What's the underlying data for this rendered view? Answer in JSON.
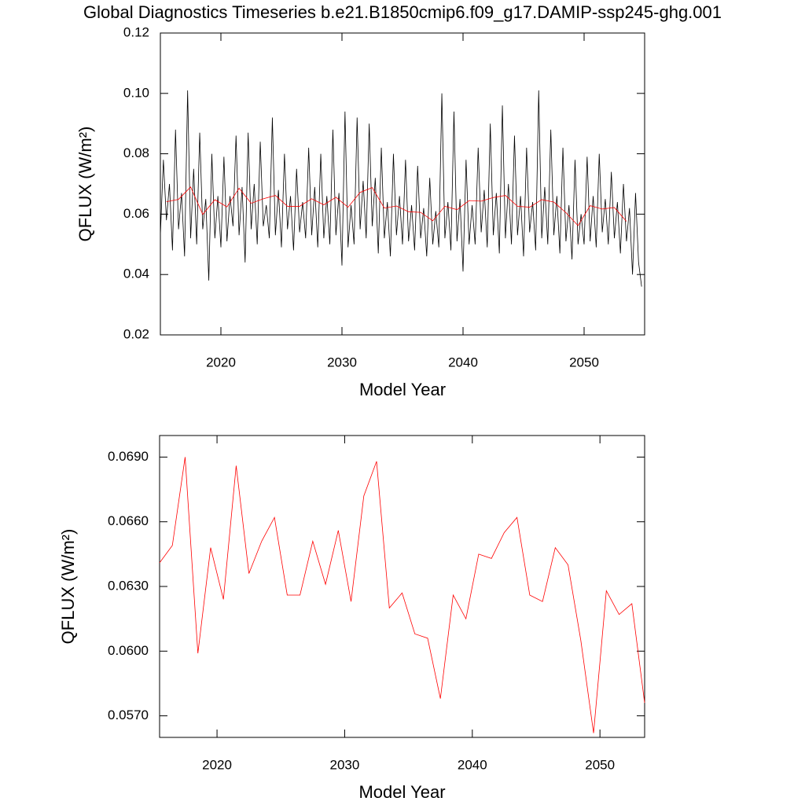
{
  "chart_data": [
    {
      "type": "line",
      "title": "Global Diagnostics Timeseries b.e21.B1850cmip6.f09_g17.DAMIP-ssp245-ghg.001",
      "xlabel": "Model Year",
      "ylabel": "QFLUX (W/m²)",
      "xlim": [
        2015,
        2055
      ],
      "xticks": [
        2020,
        2030,
        2040,
        2050
      ],
      "ylim": [
        0.02,
        0.12
      ],
      "yticks": [
        0.02,
        0.04,
        0.06,
        0.08,
        {
          "value": 0.1,
          "label": "0.10"
        },
        0.12
      ],
      "grid": false,
      "series": [
        {
          "color": "#000000",
          "x": [
            2015,
            2015.25,
            2015.5,
            2015.75,
            2016,
            2016.25,
            2016.5,
            2016.75,
            2017,
            2017.25,
            2017.5,
            2017.75,
            2018,
            2018.25,
            2018.5,
            2018.75,
            2019,
            2019.25,
            2019.5,
            2019.75,
            2020,
            2020.25,
            2020.5,
            2020.75,
            2021,
            2021.25,
            2021.5,
            2021.75,
            2022,
            2022.25,
            2022.5,
            2022.75,
            2023,
            2023.25,
            2023.5,
            2023.75,
            2024,
            2024.25,
            2024.5,
            2024.75,
            2025,
            2025.25,
            2025.5,
            2025.75,
            2026,
            2026.25,
            2026.5,
            2026.75,
            2027,
            2027.25,
            2027.5,
            2027.75,
            2028,
            2028.25,
            2028.5,
            2028.75,
            2029,
            2029.25,
            2029.5,
            2029.75,
            2030,
            2030.25,
            2030.5,
            2030.75,
            2031,
            2031.25,
            2031.5,
            2031.75,
            2032,
            2032.25,
            2032.5,
            2032.75,
            2033,
            2033.25,
            2033.5,
            2033.75,
            2034,
            2034.25,
            2034.5,
            2034.75,
            2035,
            2035.25,
            2035.5,
            2035.75,
            2036,
            2036.25,
            2036.5,
            2036.75,
            2037,
            2037.25,
            2037.5,
            2037.75,
            2038,
            2038.25,
            2038.5,
            2038.75,
            2039,
            2039.25,
            2039.5,
            2039.75,
            2040,
            2040.25,
            2040.5,
            2040.75,
            2041,
            2041.25,
            2041.5,
            2041.75,
            2042,
            2042.25,
            2042.5,
            2042.75,
            2043,
            2043.25,
            2043.5,
            2043.75,
            2044,
            2044.25,
            2044.5,
            2044.75,
            2045,
            2045.25,
            2045.5,
            2045.75,
            2046,
            2046.25,
            2046.5,
            2046.75,
            2047,
            2047.25,
            2047.5,
            2047.75,
            2048,
            2048.25,
            2048.5,
            2048.75,
            2049,
            2049.25,
            2049.5,
            2049.75,
            2050,
            2050.25,
            2050.5,
            2050.75,
            2051,
            2051.25,
            2051.5,
            2051.75,
            2052,
            2052.25,
            2052.5,
            2052.75,
            2053,
            2053.25,
            2053.5,
            2053.75,
            2054,
            2054.25,
            2054.5,
            2054.75
          ],
          "values": [
            0.053,
            0.078,
            0.058,
            0.07,
            0.048,
            0.088,
            0.055,
            0.067,
            0.046,
            0.101,
            0.052,
            0.075,
            0.05,
            0.087,
            0.055,
            0.065,
            0.038,
            0.08,
            0.052,
            0.066,
            0.049,
            0.079,
            0.051,
            0.066,
            0.056,
            0.086,
            0.053,
            0.069,
            0.044,
            0.087,
            0.055,
            0.07,
            0.05,
            0.084,
            0.056,
            0.063,
            0.052,
            0.092,
            0.053,
            0.068,
            0.049,
            0.08,
            0.055,
            0.066,
            0.048,
            0.075,
            0.054,
            0.064,
            0.052,
            0.082,
            0.053,
            0.069,
            0.049,
            0.08,
            0.052,
            0.066,
            0.05,
            0.088,
            0.053,
            0.067,
            0.043,
            0.094,
            0.049,
            0.063,
            0.05,
            0.092,
            0.055,
            0.071,
            0.052,
            0.09,
            0.056,
            0.072,
            0.047,
            0.082,
            0.052,
            0.064,
            0.046,
            0.08,
            0.053,
            0.066,
            0.05,
            0.078,
            0.051,
            0.063,
            0.048,
            0.076,
            0.052,
            0.062,
            0.046,
            0.072,
            0.05,
            0.061,
            0.049,
            0.1,
            0.052,
            0.064,
            0.048,
            0.094,
            0.051,
            0.065,
            0.041,
            0.078,
            0.05,
            0.063,
            0.05,
            0.082,
            0.054,
            0.068,
            0.049,
            0.09,
            0.053,
            0.067,
            0.047,
            0.096,
            0.052,
            0.07,
            0.05,
            0.086,
            0.053,
            0.066,
            0.046,
            0.082,
            0.054,
            0.064,
            0.048,
            0.101,
            0.052,
            0.069,
            0.05,
            0.088,
            0.053,
            0.066,
            0.047,
            0.082,
            0.051,
            0.063,
            0.045,
            0.078,
            0.05,
            0.06,
            0.05,
            0.079,
            0.051,
            0.066,
            0.049,
            0.08,
            0.054,
            0.065,
            0.05,
            0.074,
            0.052,
            0.064,
            0.047,
            0.07,
            0.051,
            0.062,
            0.04,
            0.067,
            0.044,
            0.036
          ]
        },
        {
          "color": "#ff0000",
          "x": [
            2015.5,
            2016.5,
            2017.5,
            2018.5,
            2019.5,
            2020.5,
            2021.5,
            2022.5,
            2023.5,
            2024.5,
            2025.5,
            2026.5,
            2027.5,
            2028.5,
            2029.5,
            2030.5,
            2031.5,
            2032.5,
            2033.5,
            2034.5,
            2035.5,
            2036.5,
            2037.5,
            2038.5,
            2039.5,
            2040.5,
            2041.5,
            2042.5,
            2043.5,
            2044.5,
            2045.5,
            2046.5,
            2047.5,
            2048.5,
            2049.5,
            2050.5,
            2051.5,
            2052.5,
            2053.5
          ],
          "values": [
            0.0641,
            0.0649,
            0.069,
            0.0599,
            0.0648,
            0.0624,
            0.0686,
            0.0636,
            0.0651,
            0.0662,
            0.0626,
            0.0626,
            0.0651,
            0.0631,
            0.0656,
            0.0623,
            0.0672,
            0.0688,
            0.062,
            0.0627,
            0.0608,
            0.0606,
            0.0578,
            0.0626,
            0.0615,
            0.0645,
            0.0643,
            0.0655,
            0.0662,
            0.0626,
            0.0623,
            0.0648,
            0.064,
            0.0605,
            0.0562,
            0.0628,
            0.0617,
            0.0622,
            0.0576
          ]
        }
      ]
    },
    {
      "type": "line",
      "xlabel": "Model Year",
      "ylabel": "QFLUX (W/m²)",
      "xlim": [
        2015.5,
        2053.5
      ],
      "xticks": [
        2020,
        2030,
        2040,
        2050
      ],
      "ylim": [
        0.056,
        0.07
      ],
      "yticks": [
        {
          "value": 0.057,
          "label": "0.0570"
        },
        {
          "value": 0.06,
          "label": "0.0600"
        },
        {
          "value": 0.063,
          "label": "0.0630"
        },
        {
          "value": 0.066,
          "label": "0.0660"
        },
        {
          "value": 0.069,
          "label": "0.0690"
        }
      ],
      "grid": false,
      "series": [
        {
          "color": "#ff0000",
          "x": [
            2015.5,
            2016.5,
            2017.5,
            2018.5,
            2019.5,
            2020.5,
            2021.5,
            2022.5,
            2023.5,
            2024.5,
            2025.5,
            2026.5,
            2027.5,
            2028.5,
            2029.5,
            2030.5,
            2031.5,
            2032.5,
            2033.5,
            2034.5,
            2035.5,
            2036.5,
            2037.5,
            2038.5,
            2039.5,
            2040.5,
            2041.5,
            2042.5,
            2043.5,
            2044.5,
            2045.5,
            2046.5,
            2047.5,
            2048.5,
            2049.5,
            2050.5,
            2051.5,
            2052.5,
            2053.5
          ],
          "values": [
            0.0641,
            0.0649,
            0.069,
            0.0599,
            0.0648,
            0.0624,
            0.0686,
            0.0636,
            0.0651,
            0.0662,
            0.0626,
            0.0626,
            0.0651,
            0.0631,
            0.0656,
            0.0623,
            0.0672,
            0.0688,
            0.062,
            0.0627,
            0.0608,
            0.0606,
            0.0578,
            0.0626,
            0.0615,
            0.0645,
            0.0643,
            0.0655,
            0.0662,
            0.0626,
            0.0623,
            0.0648,
            0.064,
            0.0605,
            0.0562,
            0.0628,
            0.0617,
            0.0622,
            0.0576
          ]
        }
      ]
    }
  ]
}
